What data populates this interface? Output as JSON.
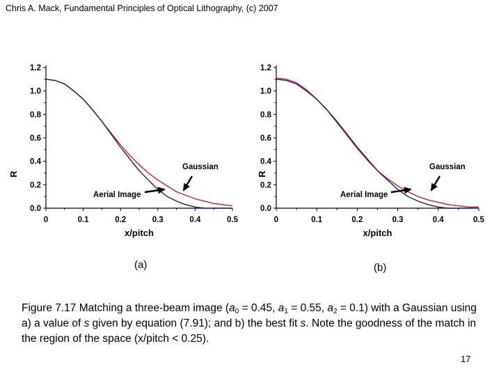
{
  "header": {
    "text": "Chris A. Mack, Fundamental Principles of Optical Lithography, (c) 2007"
  },
  "chart_data": [
    {
      "type": "line",
      "panel_label": "(a)",
      "xlabel": "x/pitch",
      "ylabel": "R",
      "xlim": [
        0,
        0.5
      ],
      "ylim": [
        0,
        1.2
      ],
      "xticks": [
        "0",
        "0.1",
        "0.2",
        "0.3",
        "0.4",
        "0.5"
      ],
      "yticks": [
        "0.0",
        "0.2",
        "0.4",
        "0.6",
        "0.8",
        "1.0",
        "1.2"
      ],
      "annotations": {
        "gaussian": "Gaussian",
        "aerial": "Aerial Image"
      },
      "series": [
        {
          "name": "Aerial Image",
          "color": "#1a1a7a",
          "x": [
            0,
            0.025,
            0.05,
            0.075,
            0.1,
            0.125,
            0.15,
            0.175,
            0.2,
            0.225,
            0.25,
            0.275,
            0.3,
            0.325,
            0.35,
            0.375,
            0.4,
            0.425,
            0.45,
            0.475,
            0.5
          ],
          "y": [
            1.1,
            1.09,
            1.06,
            1.0,
            0.93,
            0.84,
            0.74,
            0.63,
            0.52,
            0.42,
            0.32,
            0.24,
            0.16,
            0.1,
            0.06,
            0.03,
            0.01,
            0.0,
            0.0,
            0.0,
            0.0
          ]
        },
        {
          "name": "Gaussian",
          "color": "#cc2020",
          "x": [
            0,
            0.025,
            0.05,
            0.075,
            0.1,
            0.125,
            0.15,
            0.175,
            0.2,
            0.225,
            0.25,
            0.275,
            0.3,
            0.325,
            0.35,
            0.375,
            0.4,
            0.425,
            0.45,
            0.475,
            0.5
          ],
          "y": [
            1.1,
            1.09,
            1.06,
            1.0,
            0.93,
            0.84,
            0.74,
            0.64,
            0.54,
            0.45,
            0.37,
            0.3,
            0.24,
            0.19,
            0.14,
            0.11,
            0.08,
            0.06,
            0.04,
            0.03,
            0.02
          ]
        }
      ]
    },
    {
      "type": "line",
      "panel_label": "(b)",
      "xlabel": "x/pitch",
      "ylabel": "R",
      "xlim": [
        0,
        0.5
      ],
      "ylim": [
        0,
        1.2
      ],
      "xticks": [
        "0",
        "0.1",
        "0.2",
        "0.3",
        "0.4",
        "0.5"
      ],
      "yticks": [
        "0.0",
        "0.2",
        "0.4",
        "0.6",
        "0.8",
        "1.0",
        "1.2"
      ],
      "annotations": {
        "gaussian": "Gaussian",
        "aerial": "Aerial Image"
      },
      "series": [
        {
          "name": "Aerial Image",
          "color": "#1a1a7a",
          "x": [
            0,
            0.025,
            0.05,
            0.075,
            0.1,
            0.125,
            0.15,
            0.175,
            0.2,
            0.225,
            0.25,
            0.275,
            0.3,
            0.325,
            0.35,
            0.375,
            0.4,
            0.425,
            0.45,
            0.475,
            0.5
          ],
          "y": [
            1.1,
            1.09,
            1.06,
            1.0,
            0.93,
            0.84,
            0.74,
            0.63,
            0.52,
            0.42,
            0.32,
            0.24,
            0.16,
            0.1,
            0.06,
            0.03,
            0.01,
            0.0,
            0.0,
            0.0,
            0.0
          ]
        },
        {
          "name": "Gaussian",
          "color": "#cc2020",
          "x": [
            0,
            0.025,
            0.05,
            0.075,
            0.1,
            0.125,
            0.15,
            0.175,
            0.2,
            0.225,
            0.25,
            0.275,
            0.3,
            0.325,
            0.35,
            0.375,
            0.4,
            0.425,
            0.45,
            0.475,
            0.5
          ],
          "y": [
            1.11,
            1.1,
            1.07,
            1.01,
            0.93,
            0.84,
            0.73,
            0.62,
            0.51,
            0.41,
            0.32,
            0.25,
            0.19,
            0.14,
            0.1,
            0.07,
            0.05,
            0.03,
            0.02,
            0.01,
            0.01
          ]
        }
      ]
    }
  ],
  "caption": {
    "p1": "Figure 7.17  Matching a three-beam image (",
    "a0": "a",
    "a0_sub": "0",
    "p2": " = 0.45, ",
    "a1": "a",
    "a1_sub": "1",
    "p3": " = 0.55, ",
    "a2": "a",
    "a2_sub": "2",
    "p4": " = 0.1) with a Gaussian using a) a value of ",
    "s1": "s",
    "p5": " given by equation (7.91); and b) the best fit ",
    "s2": "s",
    "p6": ".  Note the goodness of the match in the region of the space (x/pitch < 0.25)."
  },
  "page_number": "17"
}
